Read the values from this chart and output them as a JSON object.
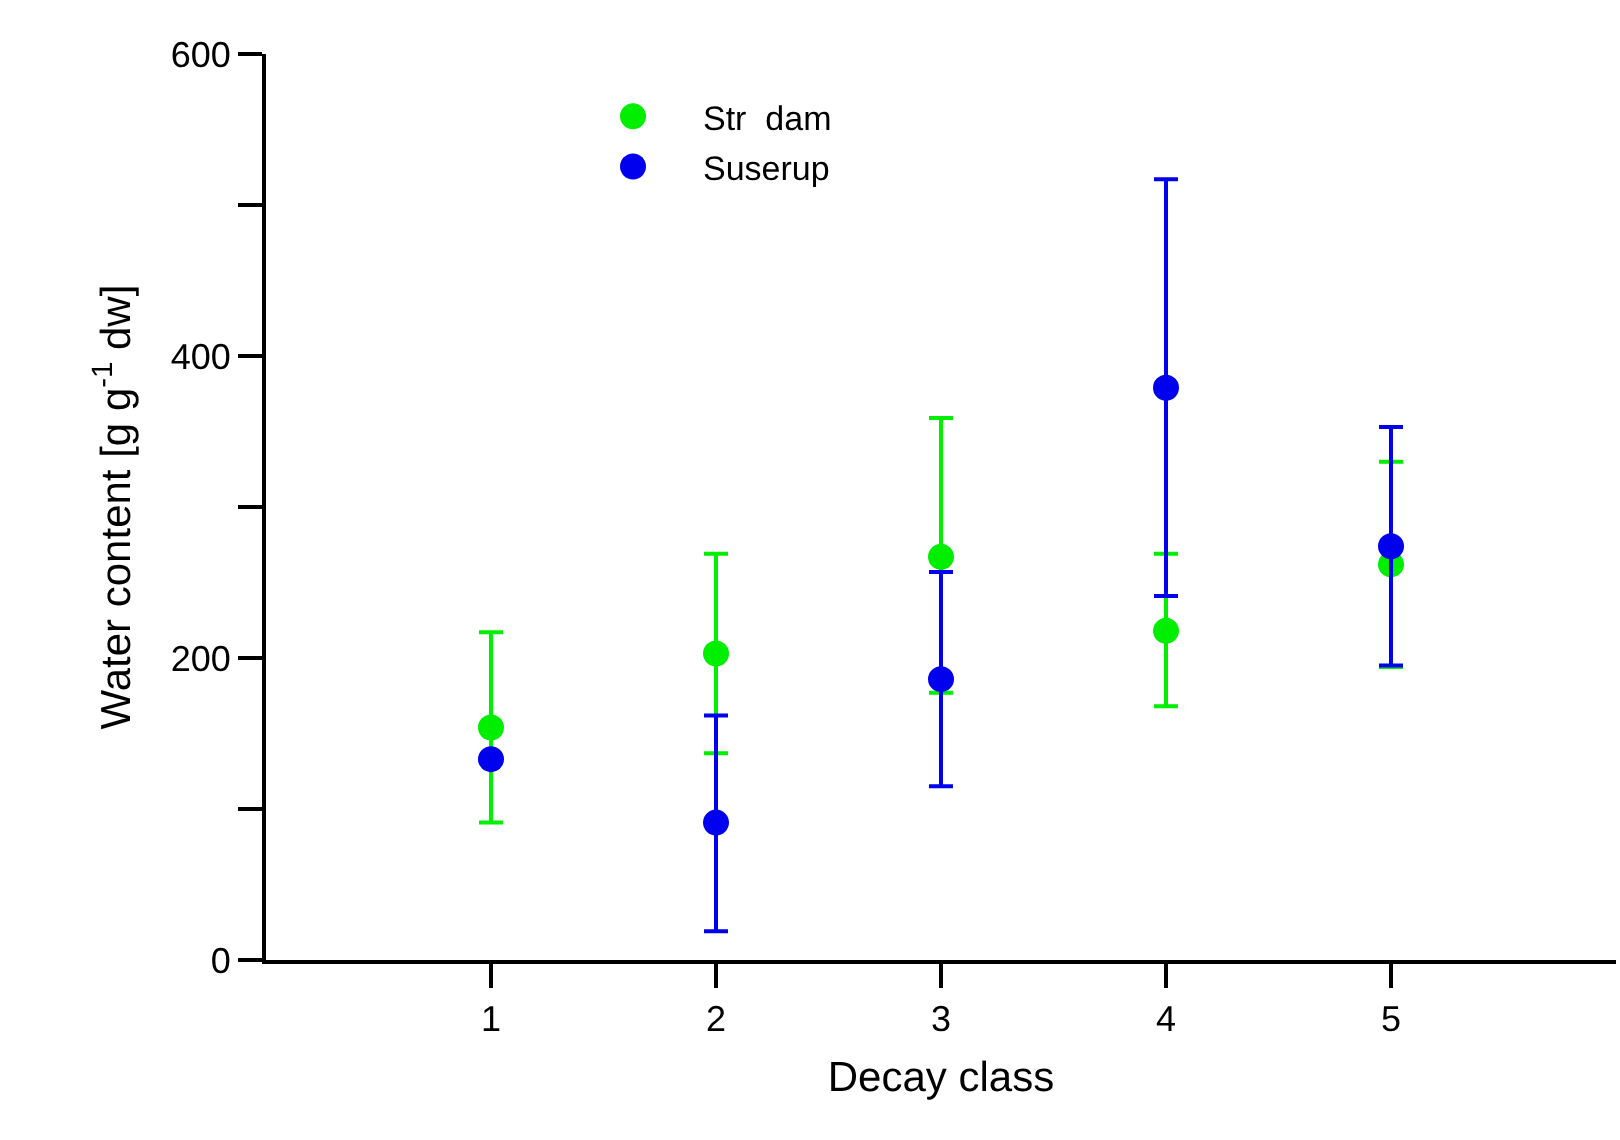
{
  "chart_data": {
    "type": "scatter",
    "xlabel": "Decay class",
    "ylabel": "Water content [g g$^{-1}$ dw]",
    "x": [
      1,
      2,
      3,
      4,
      5
    ],
    "series": [
      {
        "name": "Str  dam",
        "color": "#00ee00",
        "values": [
          154,
          203,
          267,
          218,
          262
        ],
        "errors": [
          [
            91,
            217
          ],
          [
            137,
            269
          ],
          [
            177,
            359
          ],
          [
            168,
            269
          ],
          [
            194,
            330
          ]
        ]
      },
      {
        "name": "Suserup",
        "color": "#0000ee",
        "values": [
          133,
          91,
          186,
          379,
          274
        ],
        "errors": [
          null,
          [
            19,
            162
          ],
          [
            115,
            257
          ],
          [
            241,
            517
          ],
          [
            195,
            353
          ]
        ]
      }
    ],
    "xlim": [
      0,
      6
    ],
    "xticks": [
      1,
      2,
      3,
      4,
      5
    ],
    "ylim": [
      0,
      600
    ],
    "yticks": [
      0,
      {
        "value": 100,
        "label": null
      },
      200,
      {
        "value": 300,
        "label": null
      },
      400,
      {
        "value": 500,
        "label": null
      },
      600
    ],
    "grid": false,
    "legend": "top left",
    "marker": "circle"
  }
}
